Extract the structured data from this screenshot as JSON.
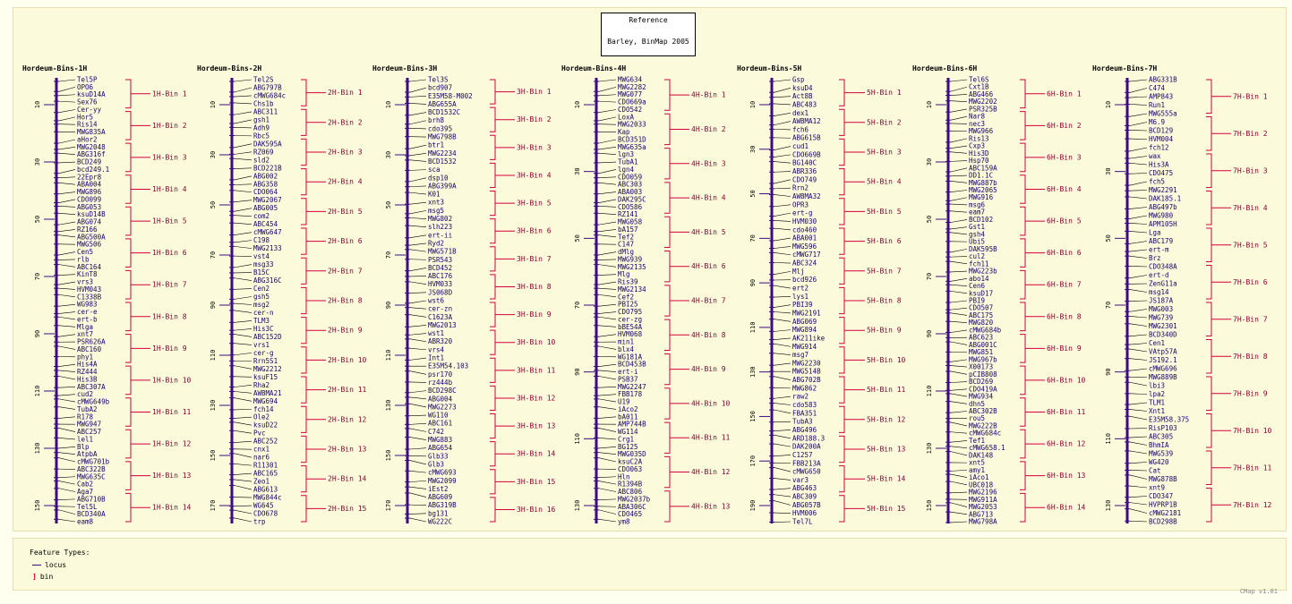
{
  "reference": {
    "line1": "Reference",
    "line2": "Barley, BinMap 2005"
  },
  "legend": {
    "title": "Feature Types:",
    "locus": "locus",
    "bin": "bin"
  },
  "footer": "CMap v1.01",
  "colors": {
    "locus": "#3d0a82",
    "bin": "#d4003c",
    "ticks": "#3d0a82"
  },
  "maps": [
    {
      "title": "Hordeum-Bins-1H",
      "ticks": [
        "10",
        "30",
        "50",
        "70",
        "90",
        "110",
        "130",
        "150"
      ],
      "tickRange": [
        10,
        150
      ],
      "loci": [
        "Tel5P",
        "OPO6",
        "ksuD14A",
        "Sex76",
        "Cer-yy",
        "Hor5",
        "Ris14",
        "MWG835A",
        "aHor2",
        "MWG2048",
        "ABG316f",
        "BCD249",
        "bcd249.1",
        "22Epr8",
        "ABA004",
        "MWG896",
        "CDO099",
        "ABG053",
        "ksuD14B",
        "ABG074",
        "RZ166",
        "ABG500A",
        "MWG506",
        "Cen5",
        "rlb",
        "ABC164",
        "KinT8",
        "vrs3",
        "HVM043",
        "C1338B",
        "WG983",
        "cer-e",
        "ert-b",
        "Mlga",
        "xnt7",
        "PSR626A",
        "ABC160",
        "phy1",
        "His4A",
        "RZ444",
        "His3B",
        "ABC307A",
        "cud2",
        "cMWG649b",
        "TubA2",
        "R178",
        "MWG947",
        "ABC257",
        "lel1",
        "Blp",
        "AtpbA",
        "cMWG701b",
        "ABC322B",
        "MWG635C",
        "Cab2",
        "Aga7",
        "ABG710B",
        "Tel5L",
        "BCD340A",
        "eam8"
      ],
      "bins": [
        "1H-Bin 1",
        "1H-Bin 2",
        "1H-Bin 3",
        "1H-Bin 4",
        "1H-Bin 5",
        "1H-Bin 6",
        "1H-Bin 7",
        "1H-Bin 8",
        "1H-Bin 9",
        "1H-Bin 10",
        "1H-Bin 11",
        "1H-Bin 12",
        "1H-Bin 13",
        "1H-Bin 14"
      ]
    },
    {
      "title": "Hordeum-Bins-2H",
      "ticks": [
        "10",
        "30",
        "50",
        "70",
        "90",
        "110",
        "130",
        "150",
        "170"
      ],
      "tickRange": [
        10,
        170
      ],
      "loci": [
        "Tel2S",
        "ABG797B",
        "cMWG684c",
        "Chs1b",
        "ABC311",
        "gsh1",
        "Adh9",
        "Rbc5",
        "DAK595A",
        "RZ069",
        "sld2",
        "BCD221B",
        "ABG002",
        "ABG358",
        "CDO064",
        "MWG2067",
        "ABG005",
        "com2",
        "ABC454",
        "cMWG647",
        "C198",
        "MWG2133",
        "vst4",
        "msg33",
        "B15C",
        "ABG316C",
        "Cen2",
        "gsh5",
        "msg2",
        "cer-n",
        "TLM3",
        "His3C",
        "ABC152D",
        "vrs1",
        "cer-g",
        "Rrn5S1",
        "MWG2212",
        "ksuF15",
        "Rha2",
        "AWBMA21",
        "MWG694",
        "fch14",
        "Ole2",
        "ksuD22",
        "Pvc",
        "ABC252",
        "cnx1",
        "nar6",
        "R11301",
        "ABC165",
        "Zeo1",
        "ABG613",
        "MWG844c",
        "WG645",
        "CDO678",
        "trp"
      ],
      "bins": [
        "2H-Bin 1",
        "2H-Bin 2",
        "2H-Bin 3",
        "2H-Bin 4",
        "2H-Bin 5",
        "2H-Bin 6",
        "2H-Bin 7",
        "2H-Bin 8",
        "2H-Bin 9",
        "2H-Bin 10",
        "2H-Bin 11",
        "2H-Bin 12",
        "2H-Bin 13",
        "2H-Bin 14",
        "2H-Bin 15"
      ]
    },
    {
      "title": "Hordeum-Bins-3H",
      "ticks": [
        "10",
        "30",
        "50",
        "70",
        "90",
        "110",
        "130",
        "150",
        "170"
      ],
      "tickRange": [
        10,
        170
      ],
      "loci": [
        "Tel3S",
        "bcd907",
        "E35M58-M002",
        "ABG655A",
        "BCD1532C",
        "brh8",
        "cdo395",
        "MWG798B",
        "btr1",
        "MWG2234",
        "BCD1532",
        "sca",
        "dsp10",
        "ABG399A",
        "K01",
        "xnt3",
        "msg5",
        "MWG802",
        "slh223",
        "ert-ii",
        "Ryd2",
        "MWG571B",
        "PSR543",
        "BCD452",
        "ABC176",
        "HVM033",
        "JS068D",
        "wst6",
        "cer-zn",
        "C1623A",
        "MWG2013",
        "wst1",
        "ABR320",
        "vrs4",
        "Int1",
        "E35M54.103",
        "psr170",
        "rz444b",
        "BCD298C",
        "ABG004",
        "MWG2273",
        "WG110",
        "ABC161",
        "C742",
        "MWG883",
        "ABG654",
        "Glb33",
        "Glb3",
        "cMWG693",
        "MWG2099",
        "iEst2",
        "ABG609",
        "ABG319B",
        "bg131",
        "WG222C"
      ],
      "bins": [
        "3H-Bin 1",
        "3H-Bin 2",
        "3H-Bin 3",
        "3H-Bin 4",
        "3H-Bin 5",
        "3H-Bin 6",
        "3H-Bin 7",
        "3H-Bin 8",
        "3H-Bin 9",
        "3H-Bin 10",
        "3H-Bin 11",
        "3H-Bin 12",
        "3H-Bin 13",
        "3H-Bin 14",
        "3H-Bin 15",
        "3H-Bin 16"
      ]
    },
    {
      "title": "Hordeum-Bins-4H",
      "ticks": [
        "10",
        "30",
        "50",
        "70",
        "90",
        "110",
        "130"
      ],
      "tickRange": [
        10,
        130
      ],
      "loci": [
        "MWG634",
        "MWG2282",
        "MWG077",
        "CDO669a",
        "CDO542",
        "LoxA",
        "MWG2033",
        "Kap",
        "BCD351D",
        "MWG635a",
        "lgn3",
        "TubA1",
        "lgn4",
        "CDO059",
        "ABC303",
        "ABA003",
        "DAK295C",
        "CDO586",
        "RZ141",
        "MWG058",
        "bA157",
        "Tef2",
        "C147",
        "dMlg",
        "MWG939",
        "MWG2135",
        "Mlg",
        "Ris39",
        "MWG2134",
        "Cef2",
        "PBI25",
        "CDO795",
        "cer-zg",
        "bBE54A",
        "HVM068",
        "min1",
        "blx4",
        "WG181A",
        "BCD453B",
        "ert-i",
        "PSB37",
        "MWG2247",
        "FBB178",
        "U19",
        "iAco2",
        "bA011",
        "AMP744B",
        "WG114",
        "Crg1",
        "BG125",
        "MWG035D",
        "ksuC2A",
        "CDO063",
        "Hln",
        "R1394B",
        "ABC806",
        "MWG2037b",
        "ABA306C",
        "CDO465",
        "ym8"
      ],
      "bins": [
        "4H-Bin 1",
        "4H-Bin 2",
        "4H-Bin 3",
        "4H-Bin 4",
        "4H-Bin 5",
        "4H-Bin 6",
        "4H-Bin 7",
        "4H-Bin 8",
        "4H-Bin 9",
        "4H-Bin 10",
        "4H-Bin 11",
        "4H-Bin 12",
        "4H-Bin 13"
      ]
    },
    {
      "title": "Hordeum-Bins-5H",
      "ticks": [
        "10",
        "30",
        "50",
        "70",
        "90",
        "110",
        "130",
        "150",
        "170",
        "190"
      ],
      "tickRange": [
        10,
        190
      ],
      "loci": [
        "Gsp",
        "ksuD4",
        "Act8B",
        "ABC483",
        "dex1",
        "AWBMA12",
        "fch6",
        "ABG615B",
        "cud1",
        "CDO669B",
        "BG140C",
        "ABR336",
        "CDO749",
        "Rrn2",
        "AWBMA32",
        "OPR3",
        "ert-g",
        "HVM030",
        "cdo460",
        "ABA001",
        "MWG596",
        "cMWG717",
        "ABC324",
        "Mlj",
        "bcd926",
        "ert2",
        "lys1",
        "PBI39",
        "MWG2191",
        "ABG069",
        "MWG894",
        "AK211ike",
        "MWG914",
        "msg7",
        "MWG2230",
        "MWG514B",
        "ABG702B",
        "MWG862",
        "raw2",
        "cdo583",
        "FBA351",
        "TubA3",
        "ABG496",
        "ARD188.3",
        "DAK200A",
        "C1257",
        "FBB213A",
        "cMWG650",
        "var3",
        "ABG463",
        "ABC309",
        "ABG057B",
        "HVM006",
        "Tel7L"
      ],
      "bins": [
        "5H-Bin 1",
        "5H-Bin 2",
        "5H-Bin 3",
        "5H-Bin 4",
        "5H-Bin 5",
        "5H-Bin 6",
        "5H-Bin 7",
        "5H-Bin 8",
        "5H-Bin 9",
        "5H-Bin 10",
        "5H-Bin 11",
        "5H-Bin 12",
        "5H-Bin 13",
        "5H-Bin 14",
        "5H-Bin 15"
      ]
    },
    {
      "title": "Hordeum-Bins-6H",
      "ticks": [
        "10",
        "30",
        "50",
        "70",
        "90",
        "110",
        "130",
        "150"
      ],
      "tickRange": [
        10,
        150
      ],
      "loci": [
        "Tel6S",
        "Cxt1B",
        "ABG466",
        "MWG2202",
        "PSR325B",
        "Nar8",
        "nec3",
        "MWG966",
        "Ris13",
        "Cxp3",
        "His3D",
        "Hsp70",
        "ABC159A",
        "DD1.1C",
        "MWG887b",
        "MWG2065",
        "MWG916",
        "msg6",
        "eam7",
        "BCD102",
        "Gst1",
        "gsh4",
        "Ubi5",
        "DAK595B",
        "cul2",
        "fch11",
        "MWG223b",
        "abo14",
        "Cen6",
        "ksuD17",
        "PBI9",
        "CDO507",
        "ABC175",
        "MWG820",
        "cMWG684b",
        "ABC623",
        "ABG001C",
        "MWG851",
        "MWG967b",
        "X00173",
        "pCIB808",
        "BCD269",
        "CDO419A",
        "MWG934",
        "dhn5",
        "ABC302B",
        "rou5",
        "MWG222B",
        "cMWG684c",
        "Tef1",
        "cMWG658.1",
        "DAK148",
        "xnt5",
        "amy1",
        "iAco1",
        "UBC018",
        "MWG2196",
        "MWG911A",
        "MWG2053",
        "ABG713",
        "MWG798A"
      ],
      "bins": [
        "6H-Bin 1",
        "6H-Bin 2",
        "6H-Bin 3",
        "6H-Bin 4",
        "6H-Bin 5",
        "6H-Bin 6",
        "6H-Bin 7",
        "6H-Bin 8",
        "6H-Bin 9",
        "6H-Bin 10",
        "6H-Bin 11",
        "6H-Bin 12",
        "6H-Bin 13",
        "6H-Bin 14"
      ]
    },
    {
      "title": "Hordeum-Bins-7H",
      "ticks": [
        "10",
        "30",
        "50",
        "70",
        "90",
        "110",
        "130"
      ],
      "tickRange": [
        10,
        130
      ],
      "loci": [
        "ABG331B",
        "C474",
        "AMP843",
        "Run1",
        "MWG555a",
        "M6.9",
        "BCD129",
        "HVM004",
        "fch12",
        "wax",
        "His3A",
        "CDO475",
        "fch5",
        "MWG2291",
        "DAK185.1",
        "ABG497b",
        "MWG980",
        "APM105H",
        "Lga",
        "ABC179",
        "ert-m",
        "Brz",
        "CDO348A",
        "ert-d",
        "ZenG11a",
        "msg14",
        "JS187A",
        "MWG003",
        "MWG739",
        "MWG2301",
        "BCD340D",
        "Cen1",
        "VAtp57A",
        "JS192.1",
        "cMWG696",
        "MWG889B",
        "lbi3",
        "lpa2",
        "TLM1",
        "Xnt1",
        "E35M58.375",
        "RisP103",
        "ABC305",
        "BhmIA",
        "MWG539",
        "WG420",
        "Cat",
        "MWG878B",
        "xnt9",
        "CDO347",
        "HVPRP1B",
        "cMWG2181",
        "BCD298B"
      ],
      "bins": [
        "7H-Bin 1",
        "7H-Bin 2",
        "7H-Bin 3",
        "7H-Bin 4",
        "7H-Bin 5",
        "7H-Bin 6",
        "7H-Bin 7",
        "7H-Bin 8",
        "7H-Bin 9",
        "7H-Bin 10",
        "7H-Bin 11",
        "7H-Bin 12"
      ]
    }
  ]
}
